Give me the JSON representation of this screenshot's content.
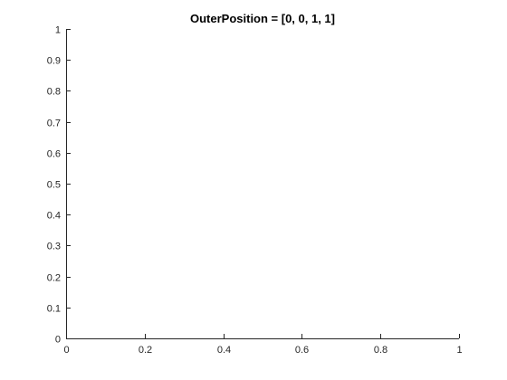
{
  "chart_data": {
    "type": "line",
    "title": "OuterPosition = [0, 0, 1, 1]",
    "xlabel": "",
    "ylabel": "",
    "xlim": [
      0,
      1
    ],
    "ylim": [
      0,
      1
    ],
    "x_ticks": [
      0,
      0.2,
      0.4,
      0.6,
      0.8,
      1
    ],
    "x_tick_labels": [
      "0",
      "0.2",
      "0.4",
      "0.6",
      "0.8",
      "1"
    ],
    "y_ticks": [
      0,
      0.1,
      0.2,
      0.3,
      0.4,
      0.5,
      0.6,
      0.7,
      0.8,
      0.9,
      1
    ],
    "y_tick_labels": [
      "0",
      "0.1",
      "0.2",
      "0.3",
      "0.4",
      "0.5",
      "0.6",
      "0.7",
      "0.8",
      "0.9",
      "1"
    ],
    "grid": false,
    "box": false,
    "series": [],
    "axis_color": "#262626",
    "title_color": "#000000",
    "background_color": "#ffffff"
  }
}
